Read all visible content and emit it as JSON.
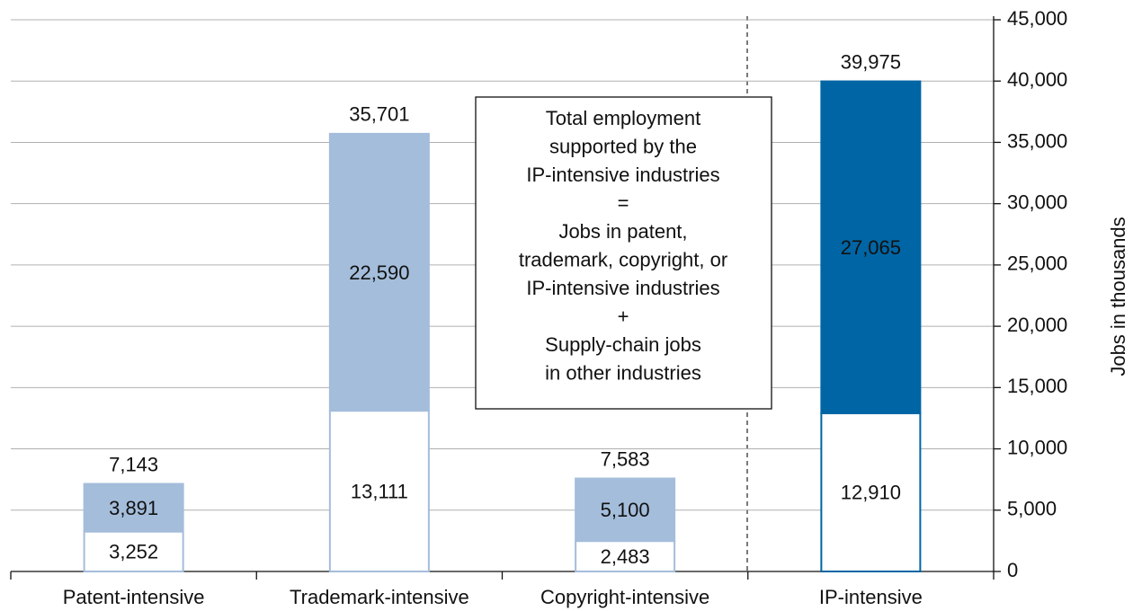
{
  "chart_data": {
    "type": "stacked_bar",
    "categories": [
      "Patent-intensive",
      "Trademark-intensive",
      "Copyright-intensive",
      "IP-intensive"
    ],
    "series": [
      {
        "fill": "#ffffff",
        "colors": [
          "#a4bddb",
          "#a4bddb",
          "#a4bddb",
          "#0065a4"
        ],
        "label_colors": [
          "#111111",
          "#111111",
          "#111111",
          "#111111"
        ],
        "values": [
          3252,
          13111,
          2483,
          12910
        ],
        "value_labels": [
          "3,252",
          "13,111",
          "2,483",
          "12,910"
        ]
      },
      {
        "colors": [
          "#a4bddb",
          "#a4bddb",
          "#a4bddb",
          "#0065a4"
        ],
        "label_colors": [
          "#111111",
          "#111111",
          "#111111",
          "#ffffff"
        ],
        "values": [
          3891,
          22590,
          5100,
          27065
        ],
        "value_labels": [
          "3,891",
          "22,590",
          "5,100",
          "27,065"
        ]
      }
    ],
    "total_labels": [
      "7,143",
      "35,701",
      "7,583",
      "39,975"
    ],
    "ylabel": "Jobs in thousands",
    "ylim": [
      0,
      45000
    ],
    "yticks": [
      0,
      {
        "value": 5000,
        "label": "5,000"
      },
      {
        "value": 10000,
        "label": "10,000"
      },
      {
        "value": 15000,
        "label": "15,000"
      },
      {
        "value": 20000,
        "label": "20,000"
      },
      {
        "value": 25000,
        "label": "25,000"
      },
      {
        "value": 30000,
        "label": "30,000"
      },
      {
        "value": 35000,
        "label": "35,000"
      },
      {
        "value": 40000,
        "label": "40,000"
      },
      {
        "value": 45000,
        "label": "45,000"
      }
    ],
    "grid": true,
    "annotation": [
      "Total employment",
      "supported by the",
      "IP-intensive industries",
      "=",
      "Jobs in patent,",
      "trademark, copyright, or",
      "IP-intensive industries",
      "+",
      "Supply-chain jobs",
      "in other industries"
    ]
  }
}
